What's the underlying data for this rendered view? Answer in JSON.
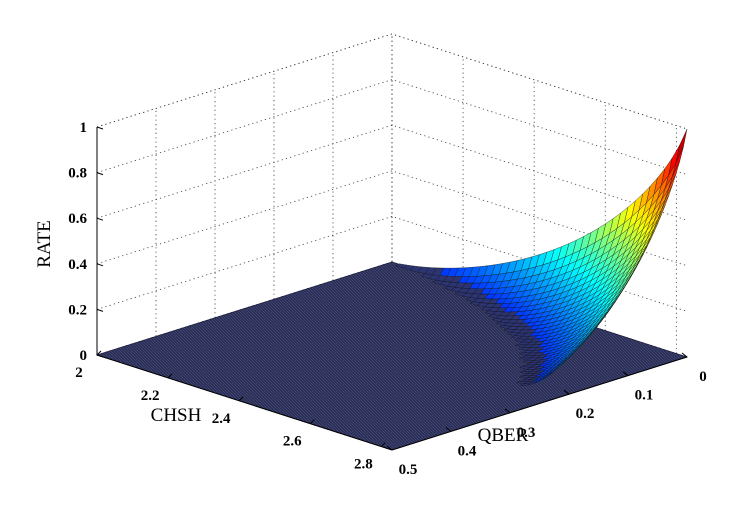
{
  "chart_data": {
    "type": "surface3d",
    "title": "",
    "xlabel": "CHSH",
    "ylabel": "QBER",
    "zlabel": "RATE",
    "xlim": [
      2,
      2.83
    ],
    "ylim": [
      0,
      0.5
    ],
    "zlim": [
      0,
      1
    ],
    "x_ticks": [
      2,
      2.2,
      2.4,
      2.6,
      2.8
    ],
    "x_tick_labels": [
      "2",
      "2.2",
      "2.4",
      "2.6",
      "2.8"
    ],
    "y_ticks": [
      0,
      0.1,
      0.2,
      0.3,
      0.4,
      0.5
    ],
    "y_tick_labels": [
      "0",
      "0.1",
      "0.2",
      "0.3",
      "0.4",
      "0.5"
    ],
    "z_ticks": [
      0,
      0.2,
      0.4,
      0.6,
      0.8,
      1
    ],
    "z_tick_labels": [
      "0",
      "0.2",
      "0.4",
      "0.6",
      "0.8",
      "1"
    ],
    "grid": true,
    "colormap": "jet",
    "surface_samples": [
      {
        "chsh": 2.83,
        "qber": 0.0,
        "rate": 1.0
      },
      {
        "chsh": 2.83,
        "qber": 0.05,
        "rate": 0.6
      },
      {
        "chsh": 2.83,
        "qber": 0.11,
        "rate": 0.3
      },
      {
        "chsh": 2.83,
        "qber": 0.2,
        "rate": 0.0
      },
      {
        "chsh": 2.5,
        "qber": 0.0,
        "rate": 0.35
      },
      {
        "chsh": 2.2,
        "qber": 0.0,
        "rate": 0.05
      },
      {
        "chsh": 2.0,
        "qber": 0.0,
        "rate": 0.0
      },
      {
        "chsh": 2.0,
        "qber": 0.5,
        "rate": 0.0
      }
    ]
  }
}
